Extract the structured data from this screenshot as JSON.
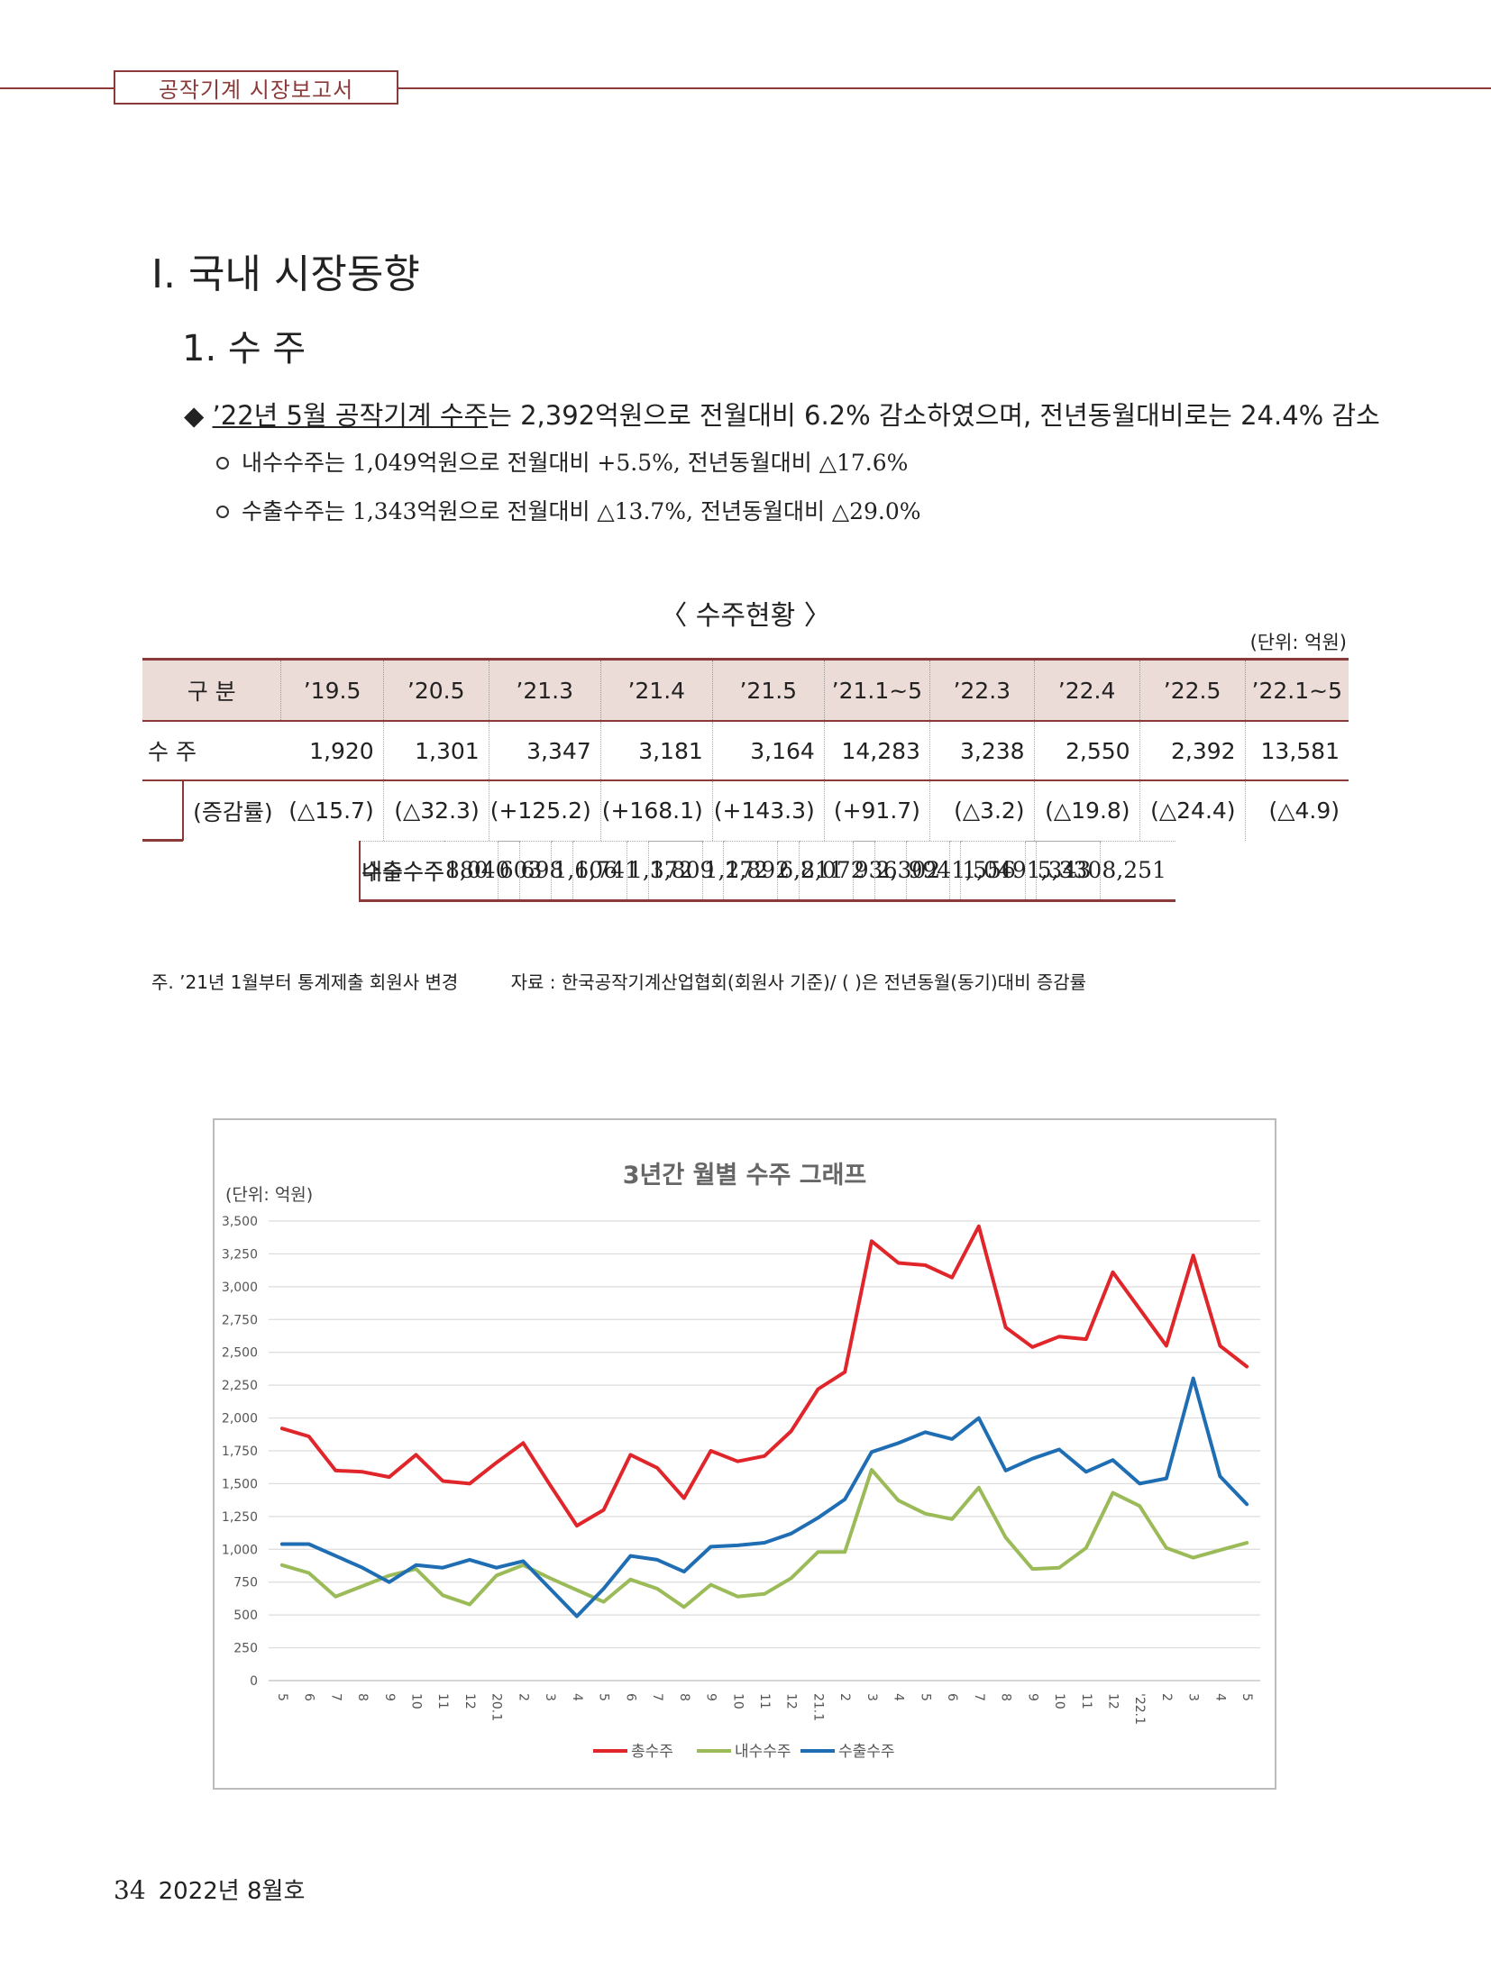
{
  "header": {
    "running_title": "공작기계 시장보고서"
  },
  "section": {
    "title": "Ⅰ. 국내 시장동향",
    "subtitle": "1. 수 주"
  },
  "summary": {
    "marker": "◆",
    "lead_underlined": "’22년 5월 공작기계 수주",
    "lead_rest": "는 2,392억원으로 전월대비 6.2% 감소하였으며, 전년동월대비로는 24.4% 감소",
    "points": [
      "내수수주는 1,049억원으로 전월대비 +5.5%, 전년동월대비 △17.6%",
      "수출수주는 1,343억원으로 전월대비 △13.7%, 전년동월대비 △29.0%"
    ]
  },
  "table": {
    "title": "〈 수주현황 〉",
    "unit": "(단위: 억원)",
    "headers": [
      "구 분",
      "’19.5",
      "’20.5",
      "’21.3",
      "’21.4",
      "’21.5",
      "’21.1~5",
      "’22.3",
      "’22.4",
      "’22.5",
      "’22.1~5"
    ],
    "rows": [
      {
        "label": "수  주",
        "values": [
          "1,920",
          "1,301",
          "3,347",
          "3,181",
          "3,164",
          "14,283",
          "3,238",
          "2,550",
          "2,392",
          "13,581"
        ]
      },
      {
        "label": "(증감률)",
        "values": [
          "(△15.7)",
          "(△32.3)",
          "(+125.2)",
          "(+168.1)",
          "(+143.3)",
          "(+91.7)",
          "(△3.2)",
          "(△19.8)",
          "(△24.4)",
          "(△4.9)"
        ]
      },
      {
        "label": "내수수주",
        "values": [
          "880",
          "603",
          "1,606",
          "1,372",
          "1,272",
          "6,211",
          "936",
          "994",
          "1,049",
          "5,330"
        ]
      },
      {
        "label": "수출수주",
        "values": [
          "1,040",
          "698",
          "1,741",
          "1,809",
          "1,892",
          "8,072",
          "2,302",
          "1,556",
          "1,343",
          "8,251"
        ]
      }
    ],
    "note_left": "주. ’21년 1월부터 통계제출 회원사 변경",
    "note_right": "자료 : 한국공작기계산업협회(회원사 기준)/ (  )은 전년동월(동기)대비 증감률"
  },
  "chart_data": {
    "type": "line",
    "title": "3년간 월별 수주 그래프",
    "unit_label": "(단위: 억원)",
    "ylim": [
      0,
      3500
    ],
    "yticks": [
      "0",
      "250",
      "500",
      "750",
      "1,000",
      "1,250",
      "1,500",
      "1,750",
      "2,000",
      "2,250",
      "2,500",
      "2,750",
      "3,000",
      "3,250",
      "3,500"
    ],
    "categories": [
      "5",
      "6",
      "7",
      "8",
      "9",
      "10",
      "11",
      "12",
      "20.1",
      "2",
      "3",
      "4",
      "5",
      "6",
      "7",
      "8",
      "9",
      "10",
      "11",
      "12",
      "21.1",
      "2",
      "3",
      "4",
      "5",
      "6",
      "7",
      "8",
      "9",
      "10",
      "11",
      "12",
      "'22.1",
      "2",
      "3",
      "4",
      "5"
    ],
    "legend_position": "bottom",
    "grid": true,
    "series": [
      {
        "name": "총수주",
        "color": "#e0262b",
        "values": [
          1920,
          1860,
          1600,
          1590,
          1550,
          1720,
          1520,
          1500,
          1660,
          1810,
          1490,
          1180,
          1300,
          1720,
          1620,
          1390,
          1750,
          1670,
          1710,
          1900,
          2220,
          2350,
          3347,
          3181,
          3164,
          3070,
          3460,
          2690,
          2540,
          2620,
          2600,
          3110,
          2830,
          2550,
          3238,
          2550,
          2392
        ]
      },
      {
        "name": "내수수주",
        "color": "#9bbb59",
        "values": [
          880,
          820,
          640,
          720,
          800,
          850,
          650,
          580,
          800,
          880,
          780,
          690,
          600,
          770,
          700,
          560,
          730,
          640,
          660,
          780,
          980,
          980,
          1606,
          1372,
          1272,
          1230,
          1470,
          1090,
          850,
          860,
          1010,
          1430,
          1330,
          1010,
          936,
          994,
          1049
        ]
      },
      {
        "name": "수출수주",
        "color": "#1f6eb4",
        "values": [
          1040,
          1040,
          950,
          860,
          750,
          880,
          860,
          920,
          860,
          910,
          700,
          490,
          700,
          950,
          920,
          830,
          1020,
          1030,
          1050,
          1120,
          1240,
          1380,
          1741,
          1809,
          1892,
          1840,
          2000,
          1600,
          1690,
          1760,
          1590,
          1680,
          1500,
          1540,
          2302,
          1556,
          1343
        ]
      }
    ]
  },
  "footer": {
    "page_number": "34",
    "issue": "2022년 8월호"
  }
}
